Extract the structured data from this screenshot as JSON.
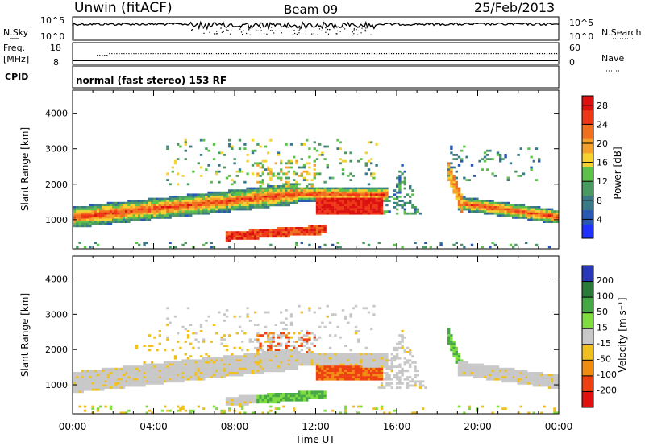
{
  "header": {
    "station": "Unwin (fitACF)",
    "beam": "Beam 09",
    "date": "25/Feb/2013"
  },
  "top_panels": {
    "noise": {
      "left_label": "N.Sky",
      "right_label": "N.Search",
      "left_ticks": [
        "10^5",
        "10^0"
      ],
      "right_ticks": [
        "10^5",
        "10^0"
      ]
    },
    "freq": {
      "left_label_1": "Freq.",
      "left_label_2": "[MHz]",
      "right_label": "Nave",
      "left_ticks": [
        "18",
        "8"
      ],
      "right_ticks": [
        "60",
        "0"
      ]
    },
    "cpid": {
      "label": "CPID",
      "text": "normal (fast stereo) 153 RF"
    }
  },
  "chart_data": [
    {
      "type": "heatmap",
      "title": "",
      "xlabel": "",
      "ylabel": "Slant Range [km]",
      "xlim": [
        "00:00",
        "24:00"
      ],
      "ylim": [
        180,
        4650
      ],
      "y_ticks": [
        1000,
        2000,
        3000,
        4000
      ],
      "colorbar": {
        "label": "Power [dB]",
        "ticks": [
          4,
          8,
          12,
          16,
          20,
          24,
          28
        ],
        "range": [
          0,
          30
        ],
        "colors": [
          "#2030ff",
          "#2858b4",
          "#3a7a86",
          "#4a9a62",
          "#5cc24a",
          "#f5d230",
          "#f5a028",
          "#f07020",
          "#ee3818",
          "#dd1010"
        ]
      }
    },
    {
      "type": "heatmap",
      "title": "",
      "xlabel": "Time UT",
      "ylabel": "Slant Range [km]",
      "xlim": [
        "00:00",
        "24:00"
      ],
      "ylim": [
        180,
        4650
      ],
      "x_ticks": [
        "00:00",
        "04:00",
        "08:00",
        "12:00",
        "16:00",
        "20:00",
        "00:00"
      ],
      "y_ticks": [
        1000,
        2000,
        3000,
        4000
      ],
      "colorbar": {
        "label": "Velocity [m s⁻¹]",
        "ticks": [
          "200",
          "100",
          "50",
          "15",
          "-15",
          "-50",
          "-100",
          "-200"
        ],
        "colors": [
          "#2838b8",
          "#2a7a3a",
          "#44a844",
          "#80dd40",
          "#c8c8c8",
          "#f0c020",
          "#f08c10",
          "#ee4010",
          "#e01010"
        ]
      }
    }
  ]
}
